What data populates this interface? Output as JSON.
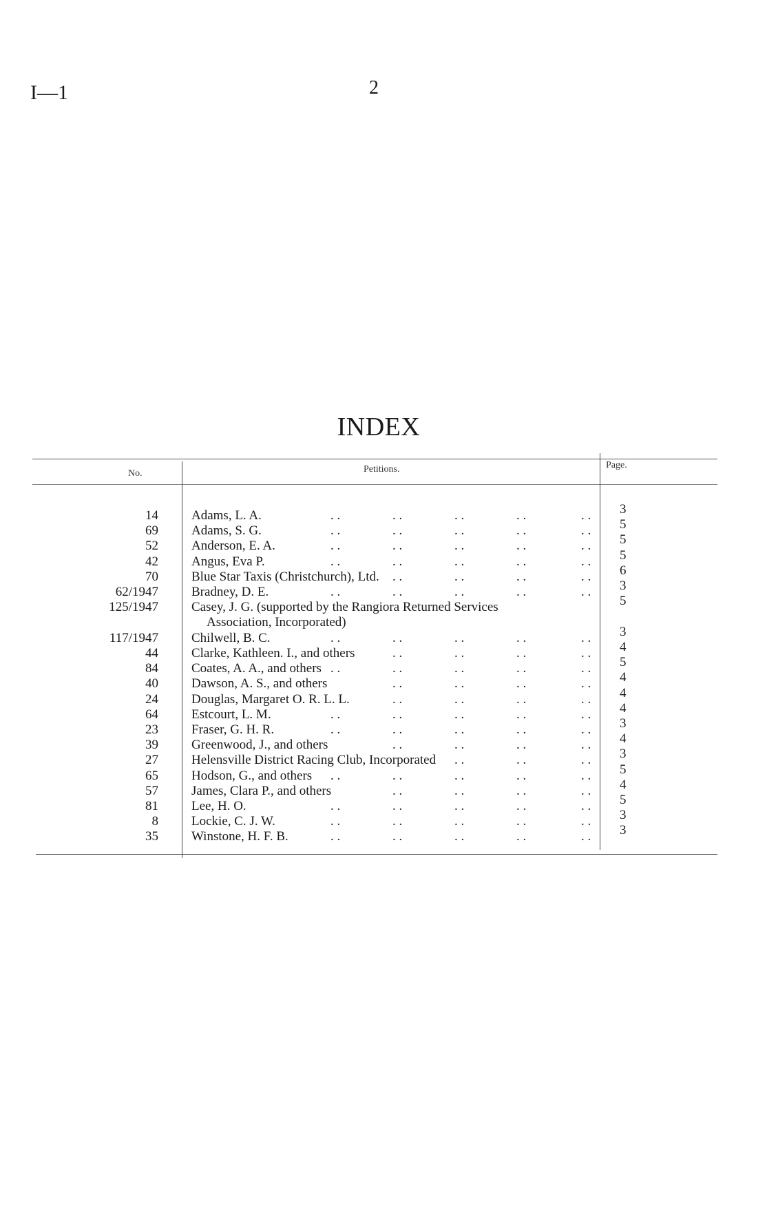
{
  "header": {
    "code": "I—1",
    "page_number": "2"
  },
  "title": "INDEX",
  "table": {
    "columns": [
      "No.",
      "Petitions.",
      "Page."
    ],
    "rows": [
      {
        "no": "14",
        "petition": "Adams, L. A.",
        "page": "3"
      },
      {
        "no": "69",
        "petition": "Adams, S. G.",
        "page": "5"
      },
      {
        "no": "52",
        "petition": "Anderson, E. A.",
        "page": "5"
      },
      {
        "no": "42",
        "petition": "Angus, Eva P.",
        "page": "5"
      },
      {
        "no": "70",
        "petition": "Blue Star Taxis (Christchurch), Ltd.",
        "page": "6"
      },
      {
        "no": "62/1947",
        "petition": "Bradney, D. E.",
        "page": "3"
      },
      {
        "no": "125/1947",
        "petition": "Casey, J. G. (supported by the Rangiora Returned Services",
        "continuation": "Association, Incorporated)",
        "page": "5"
      },
      {
        "no": "117/1947",
        "petition": "Chilwell, B. C.",
        "page": "3"
      },
      {
        "no": "44",
        "petition": "Clarke, Kathleen. I., and others",
        "page": "4"
      },
      {
        "no": "84",
        "petition": "Coates, A. A., and others",
        "page": "5"
      },
      {
        "no": "40",
        "petition": "Dawson, A. S., and others",
        "page": "4"
      },
      {
        "no": "24",
        "petition": "Douglas, Margaret O. R. L. L.",
        "page": "4"
      },
      {
        "no": "64",
        "petition": "Estcourt, L. M.",
        "page": "4"
      },
      {
        "no": "23",
        "petition": "Fraser, G. H. R.",
        "page": "3"
      },
      {
        "no": "39",
        "petition": "Greenwood, J., and others",
        "page": "4"
      },
      {
        "no": "27",
        "petition": "Helensville District Racing Club, Incorporated",
        "page": "3"
      },
      {
        "no": "65",
        "petition": "Hodson, G., and others",
        "page": "5"
      },
      {
        "no": "57",
        "petition": "James, Clara P., and others",
        "page": "4"
      },
      {
        "no": "81",
        "petition": "Lee, H. O.",
        "page": "5"
      },
      {
        "no": "8",
        "petition": "Lockie, C. J. W.",
        "page": "3"
      },
      {
        "no": "35",
        "petition": "Winstone, H. F. B.",
        "page": "3"
      }
    ]
  }
}
